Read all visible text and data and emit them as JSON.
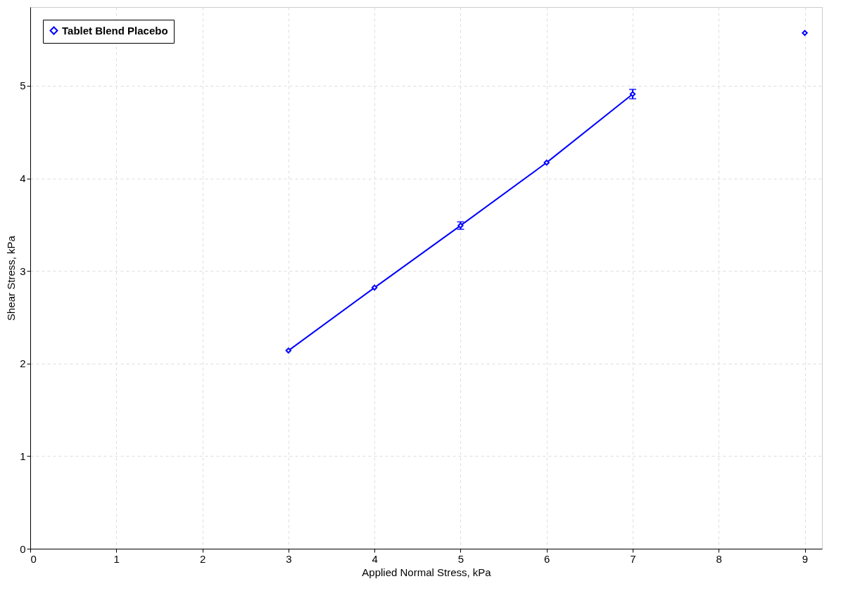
{
  "chart_data": {
    "type": "line",
    "xlabel": "Applied Normal Stress, kPa",
    "ylabel": "Shear Stress, kPa",
    "xlim": [
      0,
      9.2
    ],
    "xticks": [
      0,
      1,
      2,
      3,
      4,
      5,
      6,
      7,
      8,
      9
    ],
    "ylim": [
      0,
      5.85
    ],
    "yticks": [
      0,
      1,
      2,
      3,
      4,
      5
    ],
    "grid": true,
    "legend": "top left",
    "marker": "diamond",
    "line_style": "solid",
    "series": [
      {
        "name": "Tablet Blend Placebo",
        "color": "#0000ff",
        "x": [
          3,
          4,
          5,
          6,
          7
        ],
        "values": [
          2.14,
          2.82,
          3.49,
          4.17,
          4.91
        ],
        "errors": [
          null,
          null,
          0.04,
          null,
          0.05
        ]
      },
      {
        "type": "scatter",
        "color": "#0000ff",
        "x": [
          9
        ],
        "values": [
          5.57
        ]
      }
    ]
  }
}
